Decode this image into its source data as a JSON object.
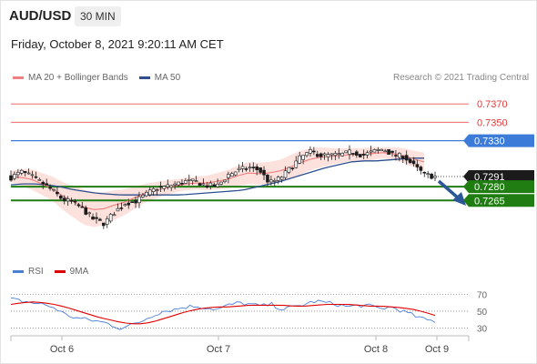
{
  "header": {
    "pair": "AUD/USD",
    "timeframe": "30 MIN",
    "datetime": "Friday, October 8, 2021 9:20:11 AM CET"
  },
  "legend": {
    "ma20": "MA 20 + Bollinger Bands",
    "ma50": "MA 50",
    "rsi": "RSI",
    "rsi_ma": "9MA"
  },
  "credit": "Research © 2021 Trading Central",
  "colors": {
    "resistance": "#e23b3b",
    "pivot": "#3d7bd9",
    "support": "#1f7d12",
    "ma20": "#f07f7f",
    "ma50": "#2d4f8f",
    "bands": "#fbd7d2",
    "rsi": "#4b7fd6",
    "rsi_ma": "#e00000",
    "candle": "#1c1c1c",
    "arrow": "#2b5797"
  },
  "chart_data": [
    {
      "type": "candlestick",
      "title": "AUD/USD 30 MIN",
      "x_tick_labels": [
        "Oct 6",
        "Oct 7",
        "Oct 8",
        "Oct 9"
      ],
      "ylim": [
        0.7196,
        0.7389
      ],
      "levels": [
        {
          "label": "0.7370",
          "value": 0.737,
          "role": "resistance"
        },
        {
          "label": "0.7350",
          "value": 0.735,
          "role": "resistance"
        },
        {
          "label": "0.7330",
          "value": 0.733,
          "role": "pivot"
        },
        {
          "label": "0.7291",
          "value": 0.7291,
          "role": "last"
        },
        {
          "label": "0.7280",
          "value": 0.728,
          "role": "support"
        },
        {
          "label": "0.7265",
          "value": 0.7265,
          "role": "support"
        }
      ],
      "forecast": "down",
      "close_path": [
        0.729,
        0.7296,
        0.7291,
        0.7284,
        0.7276,
        0.7266,
        0.7263,
        0.7255,
        0.7244,
        0.724,
        0.7252,
        0.7262,
        0.7264,
        0.7271,
        0.7278,
        0.728,
        0.7283,
        0.7286,
        0.7285,
        0.7281,
        0.7281,
        0.7293,
        0.7298,
        0.7301,
        0.7298,
        0.7284,
        0.7289,
        0.73,
        0.7312,
        0.7318,
        0.7314,
        0.7314,
        0.7315,
        0.7318,
        0.7314,
        0.7318,
        0.7321,
        0.7314,
        0.7313,
        0.7302,
        0.7293,
        0.7291
      ],
      "ma20_path": [
        0.7291,
        0.729,
        0.7288,
        0.7283,
        0.7278,
        0.727,
        0.7264,
        0.7258,
        0.7255,
        0.7256,
        0.726,
        0.7263,
        0.7268,
        0.7273,
        0.7276,
        0.7279,
        0.7281,
        0.7283,
        0.7284,
        0.7284,
        0.7286,
        0.7288,
        0.7292,
        0.7295,
        0.7294,
        0.7295,
        0.7297,
        0.7301,
        0.7306,
        0.731,
        0.7312,
        0.7313,
        0.7314,
        0.7315,
        0.7315,
        0.7316,
        0.7317,
        0.7316,
        0.7314,
        0.731,
        0.7307
      ],
      "band_half_width_path": [
        0.0006,
        0.0009,
        0.0011,
        0.0012,
        0.0013,
        0.0015,
        0.0017,
        0.0019,
        0.0019,
        0.0018,
        0.0016,
        0.0014,
        0.0012,
        0.001,
        0.0009,
        0.0008,
        0.0007,
        0.0007,
        0.0007,
        0.0008,
        0.0009,
        0.001,
        0.0011,
        0.0012,
        0.0012,
        0.0012,
        0.0012,
        0.0013,
        0.0013,
        0.0012,
        0.0011,
        0.0009,
        0.0008,
        0.0007,
        0.0007,
        0.0007,
        0.0006,
        0.0007,
        0.0008,
        0.0009,
        0.001
      ],
      "ma50_path": [
        0.7282,
        0.7283,
        0.7283,
        0.7282,
        0.728,
        0.7277,
        0.7275,
        0.7273,
        0.7272,
        0.7271,
        0.7271,
        0.7271,
        0.7271,
        0.7271,
        0.7271,
        0.7272,
        0.7273,
        0.7274,
        0.7275,
        0.7276,
        0.7279,
        0.7282,
        0.7285,
        0.7289,
        0.7293,
        0.7297,
        0.7301,
        0.7304,
        0.7307,
        0.7308,
        0.7308,
        0.7309,
        0.731,
        0.7311,
        0.7311
      ]
    },
    {
      "type": "line",
      "title": "RSI",
      "ylim": [
        24,
        78
      ],
      "y_tick_labels": [
        "70",
        "50",
        "30"
      ],
      "guides": [
        70,
        50,
        30
      ],
      "series": [
        {
          "name": "RSI",
          "values": [
            64,
            62,
            60,
            58,
            54,
            46,
            42,
            40,
            38,
            35,
            30,
            33,
            38,
            45,
            50,
            52,
            55,
            56,
            54,
            52,
            57,
            60,
            58,
            56,
            58,
            52,
            55,
            58,
            62,
            60,
            58,
            55,
            57,
            56,
            53,
            55,
            50,
            45,
            40,
            38
          ]
        },
        {
          "name": "9MA",
          "values": [
            58,
            60,
            61,
            60,
            58,
            55,
            51,
            47,
            43,
            40,
            37,
            35,
            35,
            37,
            41,
            45,
            49,
            52,
            54,
            55,
            55,
            56,
            57,
            57,
            57,
            57,
            56,
            56,
            57,
            58,
            58,
            58,
            57,
            56,
            56,
            55,
            54,
            52,
            49,
            45
          ]
        }
      ]
    }
  ]
}
